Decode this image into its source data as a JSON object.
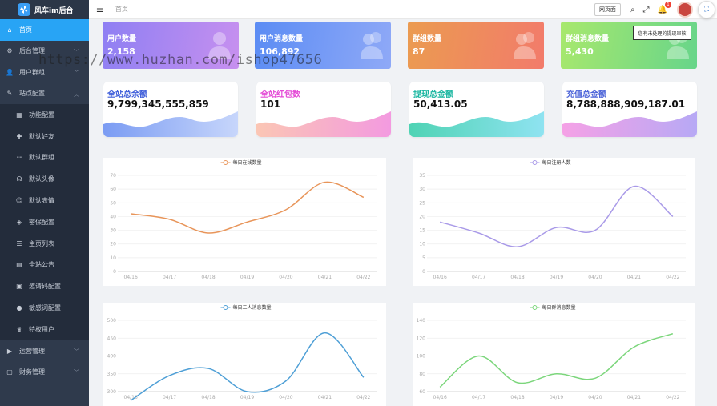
{
  "app": {
    "logo_text": "风车im后台",
    "breadcrumb": "首页"
  },
  "sidebar": {
    "items": [
      {
        "label": "首页",
        "icon": "home-icon",
        "active": true
      },
      {
        "label": "后台管理",
        "icon": "gear-icon",
        "expandable": true
      },
      {
        "label": "用户群组",
        "icon": "user-icon",
        "expandable": true
      },
      {
        "label": "站点配置",
        "icon": "wrench-icon",
        "expandable": true,
        "expanded": true
      }
    ],
    "subitems": [
      {
        "label": "功能配置",
        "icon": "grid-icon"
      },
      {
        "label": "默认好友",
        "icon": "user-add-icon"
      },
      {
        "label": "默认群组",
        "icon": "group-icon"
      },
      {
        "label": "默认头像",
        "icon": "headset-icon"
      },
      {
        "label": "默认表情",
        "icon": "smile-icon"
      },
      {
        "label": "密保配置",
        "icon": "shield-icon"
      },
      {
        "label": "主页列表",
        "icon": "list-icon"
      },
      {
        "label": "全站公告",
        "icon": "notice-icon"
      },
      {
        "label": "邀请码配置",
        "icon": "ticket-icon"
      },
      {
        "label": "敏感词配置",
        "icon": "alert-icon"
      },
      {
        "label": "特权用户",
        "icon": "crown-icon"
      }
    ],
    "bottom_items": [
      {
        "label": "运营管理",
        "icon": "chart-icon",
        "expandable": true
      },
      {
        "label": "财务管理",
        "icon": "wallet-icon",
        "expandable": true
      }
    ]
  },
  "topbar": {
    "front_page_button": "网页面",
    "notification_count": "1",
    "tooltip": "您有未处理的提现审核"
  },
  "stats": [
    {
      "label": "用户数量",
      "value": "2,158"
    },
    {
      "label": "用户消息数量",
      "value": "106,892"
    },
    {
      "label": "群组数量",
      "value": "87"
    },
    {
      "label": "群组消息数量",
      "value": "5,430"
    }
  ],
  "wave_cards": [
    {
      "label": "全站总余额",
      "value": "9,799,345,555,859",
      "label_color": "#3b5bd9",
      "wave_from": "#7b9cf3",
      "wave_to": "#c7d6fb"
    },
    {
      "label": "全站红包数",
      "value": "101",
      "label_color": "#e44ad6",
      "wave_from": "#fbc6b4",
      "wave_to": "#f39ae0"
    },
    {
      "label": "提现总金额",
      "value": "50,413.05",
      "label_color": "#19b6a0",
      "wave_from": "#4fd3b4",
      "wave_to": "#8fe3f1"
    },
    {
      "label": "充值总金额",
      "value": "8,788,888,909,187.01",
      "label_color": "#4a62d8",
      "wave_from": "#f5a1e6",
      "wave_to": "#b7a9f5"
    }
  ],
  "watermark": "https://www.huzhan.com/ishop47656",
  "chart_data": [
    {
      "type": "line",
      "legend": "每日在线数量",
      "color": "#e8955a",
      "categories": [
        "04/16",
        "04/17",
        "04/18",
        "04/19",
        "04/20",
        "04/21",
        "04/22"
      ],
      "values": [
        42,
        38,
        28,
        36,
        45,
        65,
        54
      ],
      "ylim": [
        0,
        70
      ],
      "yticks": [
        0,
        10,
        20,
        30,
        40,
        50,
        60,
        70
      ]
    },
    {
      "type": "line",
      "legend": "每日注册人数",
      "color": "#a99ae8",
      "categories": [
        "04/16",
        "04/17",
        "04/18",
        "04/19",
        "04/20",
        "04/21",
        "04/22"
      ],
      "values": [
        18,
        14,
        9,
        16,
        15,
        31,
        20
      ],
      "ylim": [
        0,
        35
      ],
      "yticks": [
        0,
        5,
        10,
        15,
        20,
        25,
        30,
        35
      ]
    },
    {
      "type": "line",
      "legend": "每日二人消息数量",
      "color": "#4e9fd6",
      "categories": [
        "04/16",
        "04/17",
        "04/18",
        "04/19",
        "04/20",
        "04/21",
        "04/22"
      ],
      "values": [
        275,
        345,
        365,
        300,
        330,
        465,
        340
      ],
      "ylim": [
        300,
        500
      ],
      "yticks": [
        300,
        350,
        400,
        450,
        500
      ],
      "visible_tick_labels": [
        "500",
        "450",
        "400",
        "350",
        "300"
      ]
    },
    {
      "type": "line",
      "legend": "每日群消息数量",
      "color": "#7cd67c",
      "categories": [
        "04/16",
        "04/17",
        "04/18",
        "04/19",
        "04/20",
        "04/21",
        "04/22"
      ],
      "values": [
        65,
        100,
        70,
        80,
        75,
        110,
        125
      ],
      "ylim": [
        60,
        140
      ],
      "yticks": [
        60,
        80,
        100,
        120,
        140
      ]
    }
  ]
}
